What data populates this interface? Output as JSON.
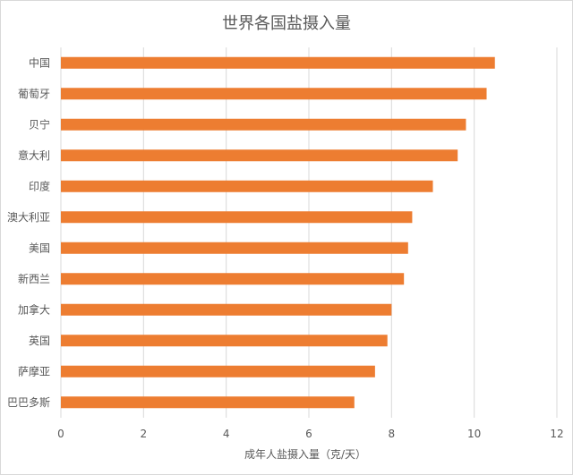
{
  "chart_data": {
    "type": "bar",
    "orientation": "horizontal",
    "title": "世界各国盐摄入量",
    "xlabel": "成年人盐摄入量（克/天）",
    "ylabel": "",
    "categories": [
      "中国",
      "葡萄牙",
      "贝宁",
      "意大利",
      "印度",
      "澳大利亚",
      "美国",
      "新西兰",
      "加拿大",
      "英国",
      "萨摩亚",
      "巴巴多斯"
    ],
    "values": [
      10.5,
      10.3,
      9.8,
      9.6,
      9.0,
      8.5,
      8.4,
      8.3,
      8.0,
      7.9,
      7.6,
      7.1
    ],
    "xlim": [
      0,
      12
    ],
    "xticks": [
      "0",
      "2",
      "4",
      "6",
      "8",
      "10",
      "12"
    ],
    "grid": "vertical",
    "legend": "none",
    "bar_color": "#ed7d31",
    "grid_color": "#d9d9d9",
    "text_color": "#595959"
  }
}
